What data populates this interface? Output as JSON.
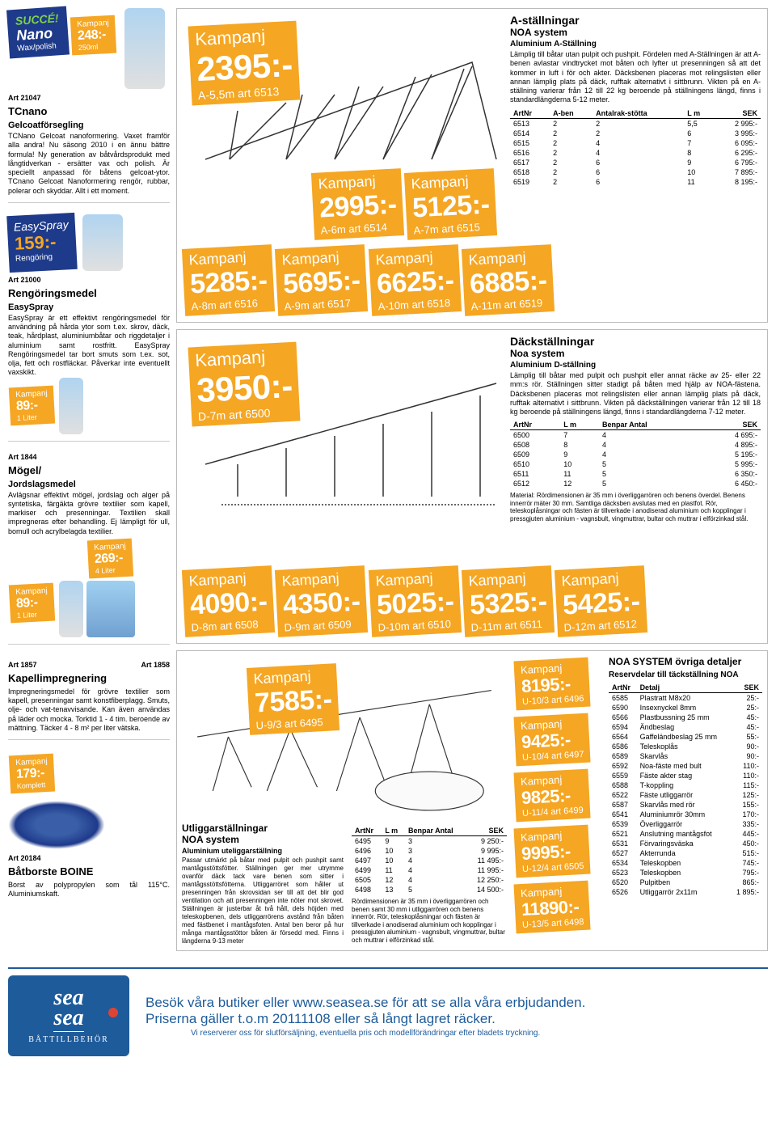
{
  "colors": {
    "orange": "#f5a623",
    "navy": "#1e3a8a",
    "blue": "#1e5b9b"
  },
  "succe": {
    "line1": "SUCCÉ!",
    "line2": "Nano",
    "line3": "Wax/polish"
  },
  "tcnano": {
    "badge_label": "Kampanj",
    "badge_price": "248:-",
    "badge_sub": "250ml",
    "art": "Art 21047",
    "title": "TCnano",
    "subtitle": "Gelcoatförsegling",
    "body": "TCNano Gelcoat nanoformering. Vaxet framför alla andra! Nu säsong 2010 i en ännu bättre formula! Ny generation av båtvårdsprodukt med långtidverkan - ersätter vax och polish. Är speciellt anpassad för båtens gelcoat-ytor. TCnano Gelcoat Nanoformering rengör, rubbar, polerar och skyddar. Allt i ett moment."
  },
  "easyspray": {
    "brand": "EasySpray",
    "price": "159:-",
    "sub": "Rengöring",
    "art": "Art 21000",
    "title": "Rengöringsmedel",
    "subtitle": "EasySpray",
    "body": "EasySpray är ett effektivt rengöringsmedel för användning på hårda ytor som t.ex. skrov, däck, teak, hårdplast, aluminiumbåtar och riggdetaljer i aluminium samt rostfritt. EasySpray Rengöringsmedel tar bort smuts som t.ex. sot, olja, fett och rostfläckar. Påverkar inte eventuellt vaxskikt.",
    "badge_label": "Kampanj",
    "badge_price": "89:-",
    "badge_sub": "1 Liter"
  },
  "mogel": {
    "art": "Art 1844",
    "title": "Mögel/",
    "subtitle": "Jordslagsmedel",
    "body": "Avlägsnar effektivt mögel, jordslag och alger på syntetiska, färgäkta grövre textilier som kapell, markiser och presenningar. Textilien skall impregneras efter behandling. Ej lämpligt för ull, bomull och acrylbelagda textilier.",
    "badge1_label": "Kampanj",
    "badge1_price": "89:-",
    "badge1_sub": "1 Liter",
    "badge2_label": "Kampanj",
    "badge2_price": "269:-",
    "badge2_sub": "4 Liter"
  },
  "kapell": {
    "art1": "Art 1857",
    "art2": "Art 1858",
    "title": "Kapellimpregnering",
    "body": "Impregneringsmedel för grövre textilier som kapell, presenningar samt konstfiberplagg. Smuts, olje- och vat-tenavvisande. Kan även användas på läder och mocka. Torktid 1 - 4 tim. beroende av mättning. Täcker 4 - 8 m² per liter vätska."
  },
  "borste": {
    "badge_label": "Kampanj",
    "badge_price": "179:-",
    "badge_sub": "Komplett",
    "art": "Art 20184",
    "title": "Båtborste BOINE",
    "body": "Borst av polypropylen som tål 115°C. Aluminiumskaft."
  },
  "a_section": {
    "title1": "A-ställningar",
    "title2": "NOA system",
    "sub": "Aluminium A-Ställning",
    "desc": "Lämplig till båtar utan pulpit och pushpit. Fördelen med A-Ställningen är att A-benen avlastar vindtrycket mot båten och lyfter ut presenningen så att det kommer in luft i för och akter. Däcksbenen placeras mot relingslisten eller annan lämplig plats på däck, rufftak alternativt i sittbrunn. Vikten på en A-ställning varierar från 12 till 22 kg beroende på ställningens längd, finns i standardlängderna 5-12 meter.",
    "big_badge": {
      "label": "Kampanj",
      "price": "2395:-",
      "sub": "A-5,5m art 6513"
    },
    "badges": [
      {
        "label": "Kampanj",
        "price": "2995:-",
        "sub": "A-6m art 6514"
      },
      {
        "label": "Kampanj",
        "price": "5125:-",
        "sub": "A-7m art 6515"
      },
      {
        "label": "Kampanj",
        "price": "5285:-",
        "sub": "A-8m art 6516"
      },
      {
        "label": "Kampanj",
        "price": "5695:-",
        "sub": "A-9m art 6517"
      },
      {
        "label": "Kampanj",
        "price": "6625:-",
        "sub": "A-10m art 6518"
      },
      {
        "label": "Kampanj",
        "price": "6885:-",
        "sub": "A-11m art 6519"
      }
    ],
    "cols": [
      "ArtNr",
      "A-ben",
      "Antalrak-stötta",
      "L m",
      "SEK"
    ],
    "rows": [
      [
        "6513",
        "2",
        "2",
        "5,5",
        "2 995:-"
      ],
      [
        "6514",
        "2",
        "2",
        "6",
        "3 995:-"
      ],
      [
        "6515",
        "2",
        "4",
        "7",
        "6 095:-"
      ],
      [
        "6516",
        "2",
        "4",
        "8",
        "6 295:-"
      ],
      [
        "6517",
        "2",
        "6",
        "9",
        "6 795:-"
      ],
      [
        "6518",
        "2",
        "6",
        "10",
        "7 895:-"
      ],
      [
        "6519",
        "2",
        "6",
        "11",
        "8 195:-"
      ]
    ]
  },
  "d_section": {
    "title1": "Däckställningar",
    "title2": "Noa system",
    "sub": "Aluminium D-ställning",
    "desc": "Lämplig till båtar med pulpit och pushpit eller annat räcke av 25- eller 22 mm:s rör. Ställningen sitter stadigt på båten med hjälp av NOA-fästena. Däcksbenen placeras mot relingslisten eller annan lämplig plats på däck, rufftak alternativt i sittbrunn. Vikten på däckställningen varierar från 12 till 18 kg beroende på ställningens längd, finns i standardlängderna 7-12 meter.",
    "big_badge": {
      "label": "Kampanj",
      "price": "3950:-",
      "sub": "D-7m art 6500"
    },
    "badges": [
      {
        "label": "Kampanj",
        "price": "4090:-",
        "sub": "D-8m art 6508"
      },
      {
        "label": "Kampanj",
        "price": "4350:-",
        "sub": "D-9m art 6509"
      },
      {
        "label": "Kampanj",
        "price": "5025:-",
        "sub": "D-10m art 6510"
      },
      {
        "label": "Kampanj",
        "price": "5325:-",
        "sub": "D-11m art 6511"
      },
      {
        "label": "Kampanj",
        "price": "5425:-",
        "sub": "D-12m art 6512"
      }
    ],
    "cols": [
      "ArtNr",
      "L m",
      "Benpar Antal",
      "SEK"
    ],
    "rows": [
      [
        "6500",
        "7",
        "4",
        "4 695:-"
      ],
      [
        "6508",
        "8",
        "4",
        "4 895:-"
      ],
      [
        "6509",
        "9",
        "4",
        "5 195:-"
      ],
      [
        "6510",
        "10",
        "5",
        "5 995:-"
      ],
      [
        "6511",
        "11",
        "5",
        "6 350:-"
      ],
      [
        "6512",
        "12",
        "5",
        "6 450:-"
      ]
    ],
    "note": "Material: Rördimensionen är 35 mm i överliggarrören och benens överdel. Benens innerrör mäter 30 mm. Samtliga däcksben avslutas med en plastfot. Rör, teleskoplåsningar och fästen är tillverkade i anodiserad aluminium och kopplingar i pressgjuten aluminium - vagnsbult, vingmuttrar, bultar och muttrar i elförzinkad stål."
  },
  "u_section": {
    "big_badge": {
      "label": "Kampanj",
      "price": "7585:-",
      "sub": "U-9/3 art 6495"
    },
    "side_badges": [
      {
        "label": "Kampanj",
        "price": "8195:-",
        "sub": "U-10/3 art 6496"
      },
      {
        "label": "Kampanj",
        "price": "9425:-",
        "sub": "U-10/4 art 6497"
      },
      {
        "label": "Kampanj",
        "price": "9825:-",
        "sub": "U-11/4 art 6499"
      },
      {
        "label": "Kampanj",
        "price": "9995:-",
        "sub": "U-12/4 art 6505"
      },
      {
        "label": "Kampanj",
        "price": "11890:-",
        "sub": "U-13/5 art 6498"
      }
    ],
    "title1": "Utliggarställningar",
    "title2": "NOA system",
    "sub": "Aluminium uteliggarställning",
    "desc": "Passar utmärkt på båtar med pulpit och pushpit samt mantågsstöttsfötter. Ställningen ger mer utrymme ovanför däck tack vare benen som sitter i mantågsstöttsfötterna. Utliggarröret som håller ut presenningen från skrovsidan ser till att det blir god ventilation och att presenningen inte nöter mot skrovet. Ställningen är justerbar åt två håll, dels höjden med teleskopbenen, dels utliggarrörens avstånd från båten med fästbenet i mantågsfoten. Antal ben beror på hur många mantågsstöttor båten är försedd med. Finns i längderna 9-13 meter",
    "cols": [
      "ArtNr",
      "L m",
      "Benpar Antal",
      "SEK"
    ],
    "rows": [
      [
        "6495",
        "9",
        "3",
        "9 250:-"
      ],
      [
        "6496",
        "10",
        "3",
        "9 995:-"
      ],
      [
        "6497",
        "10",
        "4",
        "11 495:-"
      ],
      [
        "6499",
        "11",
        "4",
        "11 995:-"
      ],
      [
        "6505",
        "12",
        "4",
        "12 250:-"
      ],
      [
        "6498",
        "13",
        "5",
        "14 500:-"
      ]
    ],
    "note": "Rördimensionen är 35 mm i överliggarrören och benen samt 30 mm i utliggarrören och benens innerrör. Rör, teleskoplåsningar och fästen är tillverkade i anodiserad aluminium och kopplingar i pressgjuten aluminium - vagnsbult, vingmuttrar, bultar och muttrar i elförzinkad stål."
  },
  "details": {
    "title": "NOA SYSTEM övriga detaljer",
    "sub": "Reservdelar till täckställning NOA",
    "cols": [
      "ArtNr",
      "Detalj",
      "SEK"
    ],
    "rows": [
      [
        "6585",
        "Plastratt M8x20",
        "25:-"
      ],
      [
        "6590",
        "Insexnyckel 8mm",
        "25:-"
      ],
      [
        "6566",
        "Plastbussning 25 mm",
        "45:-"
      ],
      [
        "6594",
        "Ändbeslag",
        "45:-"
      ],
      [
        "6564",
        "Gaffeländbeslag 25 mm",
        "55:-"
      ],
      [
        "6586",
        "Teleskoplås",
        "90:-"
      ],
      [
        "6589",
        "Skarvlås",
        "90:-"
      ],
      [
        "6592",
        "Noa-fäste med bult",
        "110:-"
      ],
      [
        "6559",
        "Fäste akter stag",
        "110:-"
      ],
      [
        "6588",
        "T-koppling",
        "115:-"
      ],
      [
        "6522",
        "Fäste utliggarrör",
        "125:-"
      ],
      [
        "6587",
        "Skarvlås med rör",
        "155:-"
      ],
      [
        "6541",
        "Aluminiumrör 30mm",
        "170:-"
      ],
      [
        "6539",
        "Överliggarrör",
        "335:-"
      ],
      [
        "6521",
        "Anslutning mantågsfot",
        "445:-"
      ],
      [
        "6531",
        "Förvaringsväska",
        "450:-"
      ],
      [
        "6527",
        "Akterrunda",
        "515:-"
      ],
      [
        "6534",
        "Teleskopben",
        "745:-"
      ],
      [
        "6523",
        "Teleskopben",
        "795:-"
      ],
      [
        "6520",
        "Pulpitben",
        "865:-"
      ],
      [
        "6526",
        "Utliggarrör 2x11m",
        "1 895:-"
      ]
    ]
  },
  "footer": {
    "logo1": "sea",
    "logo2": "sea",
    "logo3": "BÅTTILLBEHÖR",
    "line1": "Besök våra butiker eller www.seasea.se för att se alla våra erbjudanden.",
    "line2": "Priserna gäller t.o.m 20111108 eller så långt lagret räcker.",
    "line3": "Vi reserverer oss för slutförsäljning, eventuella pris och modellförändringar efter bladets tryckning."
  }
}
